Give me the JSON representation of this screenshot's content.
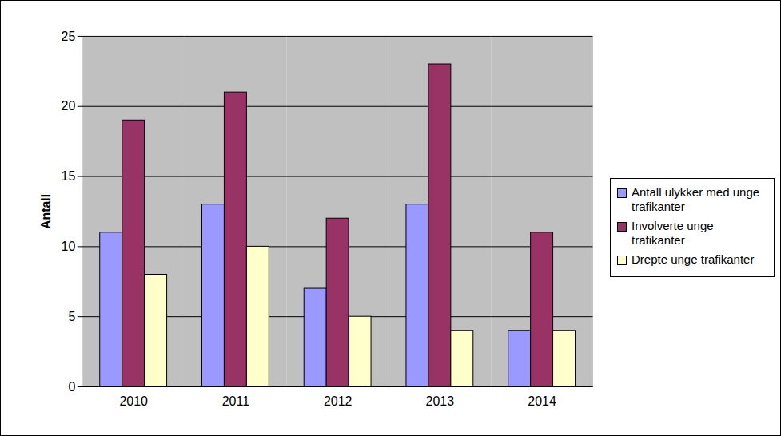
{
  "chart_data": {
    "type": "bar",
    "categories": [
      "2010",
      "2011",
      "2012",
      "2013",
      "2014"
    ],
    "series": [
      {
        "name": "Antall ulykker med unge trafikanter",
        "color": "#9999ff",
        "values": [
          11,
          13,
          7,
          13,
          4
        ]
      },
      {
        "name": "Involverte unge trafikanter",
        "color": "#993366",
        "values": [
          19,
          21,
          12,
          23,
          11
        ]
      },
      {
        "name": "Drepte unge trafikanter",
        "color": "#ffffcc",
        "values": [
          8,
          10,
          5,
          4,
          4
        ]
      }
    ],
    "ylabel": "Antall",
    "ylim": [
      0,
      25
    ],
    "yticks": [
      0,
      5,
      10,
      15,
      20,
      25
    ],
    "grid": true,
    "legend": "right"
  }
}
